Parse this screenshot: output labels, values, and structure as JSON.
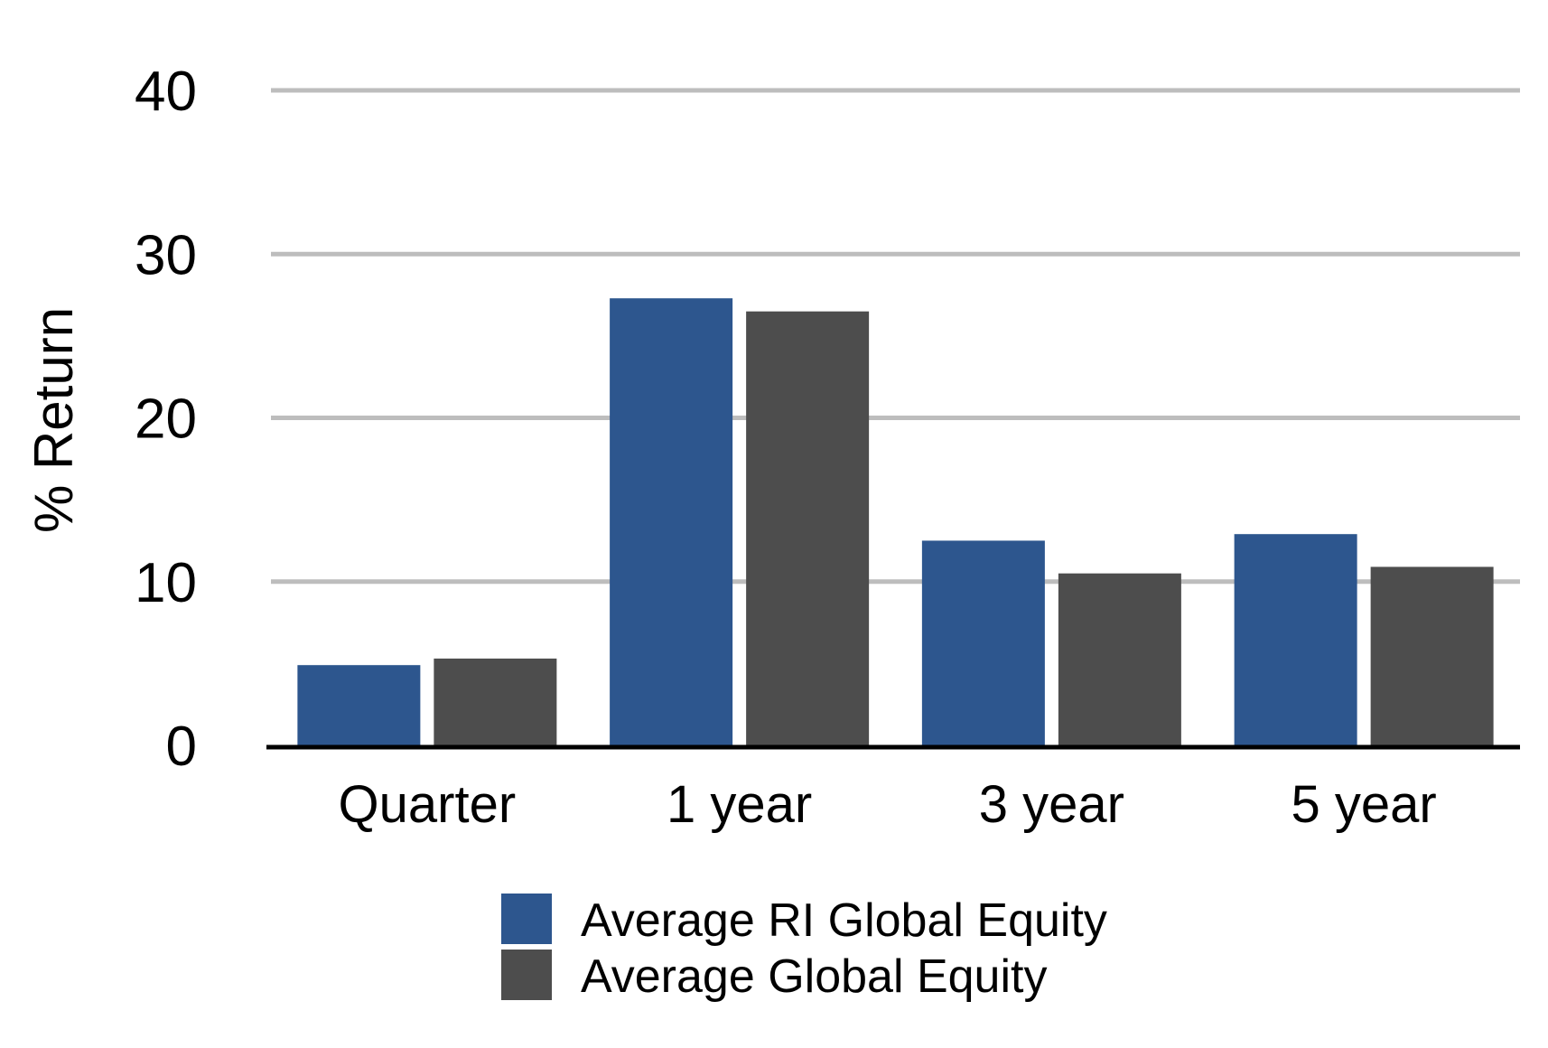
{
  "chart_data": {
    "type": "bar",
    "title": "",
    "ylabel": "% Return",
    "xlabel": "",
    "ylim": [
      0,
      40
    ],
    "yticks": [
      0,
      10,
      20,
      30,
      40
    ],
    "grid": true,
    "legend_position": "bottom",
    "categories": [
      "Quarter",
      "1 year",
      "3 year",
      "5 year"
    ],
    "series": [
      {
        "name": "Average RI Global Equity",
        "color": "#2d568e",
        "values": [
          4.9,
          27.3,
          12.5,
          12.9
        ]
      },
      {
        "name": "Average Global Equity",
        "color": "#4d4d4d",
        "values": [
          5.3,
          26.5,
          10.5,
          10.9
        ]
      }
    ],
    "colors": {
      "grid": "#bdbdbd",
      "axis": "#000000"
    }
  }
}
